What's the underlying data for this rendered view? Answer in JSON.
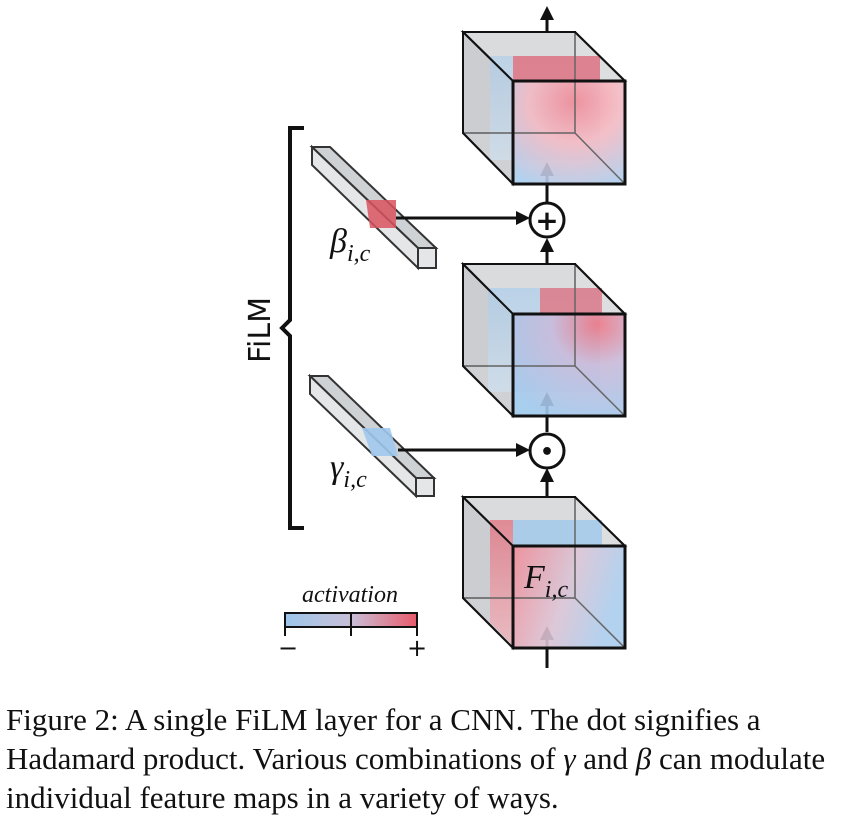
{
  "figure": {
    "labels": {
      "film": "FiLM",
      "beta": "β",
      "gamma": "γ",
      "feature": "F",
      "subscript": "i,c"
    },
    "operators": {
      "add": "+",
      "hadamard": "•"
    },
    "legend": {
      "title": "activation",
      "min_label": "−",
      "max_label": "+"
    },
    "colors": {
      "negative": "#9cc6ea",
      "positive": "#e85a6a",
      "neutral": "#e3e5e7"
    }
  },
  "caption": {
    "prefix": "Figure 2: A single FiLM layer for a CNN. The dot signifies a Hadamard product. Various combinations of ",
    "gamma": "γ",
    "middle": " and ",
    "beta": "β",
    "suffix": " can modulate individual feature maps in a variety of ways."
  }
}
